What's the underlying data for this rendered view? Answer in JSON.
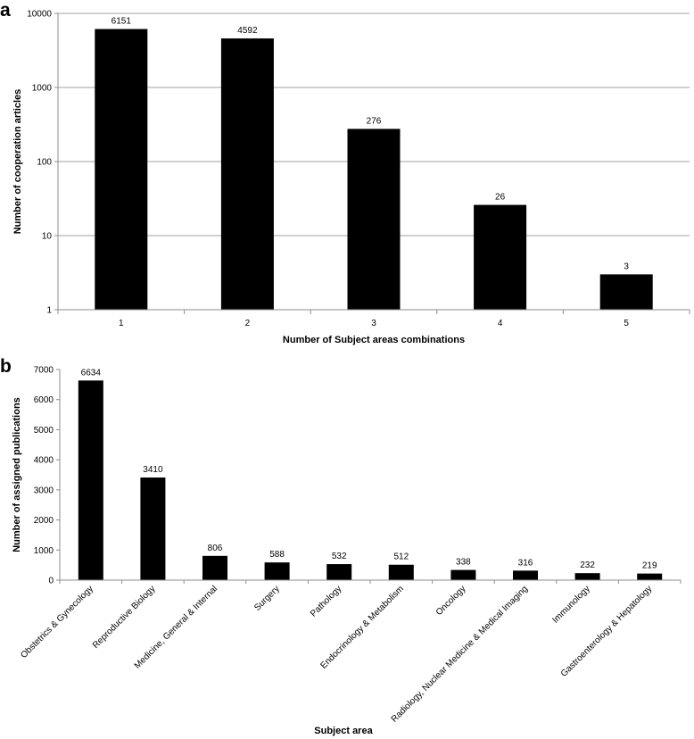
{
  "chart_data": [
    {
      "panel": "a",
      "type": "bar",
      "categories": [
        "1",
        "2",
        "3",
        "4",
        "5"
      ],
      "values": [
        6151,
        4592,
        276,
        26,
        3
      ],
      "data_labels": [
        "6151",
        "4592",
        "276",
        "26",
        "3"
      ],
      "xlabel": "Number of Subject areas combinations",
      "ylabel": "Number of cooperation articles",
      "yscale": "log",
      "ylim": [
        1,
        10000
      ],
      "yticks": [
        1,
        10,
        100,
        1000,
        10000
      ],
      "ytick_labels": [
        "1",
        "10",
        "100",
        "1000",
        "10000"
      ],
      "grid": true,
      "bar_color": "#000000"
    },
    {
      "panel": "b",
      "type": "bar",
      "categories": [
        "Obstetrics & Gynecology",
        "Reproductive Biology",
        "Medicine, General & Internal",
        "Surgery",
        "Pathology",
        "Endocrinology & Metabolism",
        "Oncology",
        "Radiology, Nuclear Medicine & Medical Imaging",
        "Immunology",
        "Gastroenterology & Hepatology"
      ],
      "values": [
        6634,
        3410,
        806,
        588,
        532,
        512,
        338,
        316,
        232,
        219
      ],
      "data_labels": [
        "6634",
        "3410",
        "806",
        "588",
        "532",
        "512",
        "338",
        "316",
        "232",
        "219"
      ],
      "xlabel": "Subject area",
      "ylabel": "Number of assigned publications",
      "yscale": "linear",
      "ylim": [
        0,
        7000
      ],
      "yticks": [
        0,
        1000,
        2000,
        3000,
        4000,
        5000,
        6000,
        7000
      ],
      "ytick_labels": [
        "0",
        "1000",
        "2000",
        "3000",
        "4000",
        "5000",
        "6000",
        "7000"
      ],
      "grid": false,
      "bar_color": "#000000"
    }
  ],
  "panels": {
    "a_letter": "a",
    "b_letter": "b"
  }
}
